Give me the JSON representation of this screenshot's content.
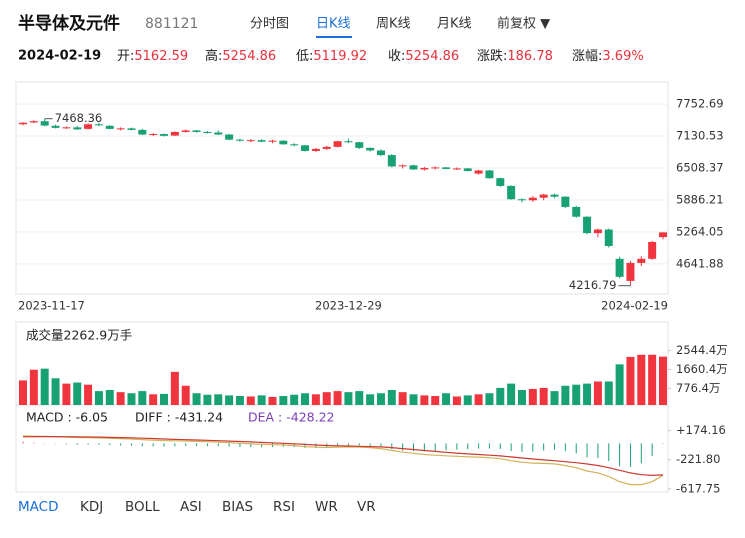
{
  "header": {
    "title": "半导体及元件",
    "code": "881121",
    "tabs": [
      "分时图",
      "日K线",
      "周K线",
      "月K线",
      "前复权 ▼"
    ],
    "active_tab": 1
  },
  "info": {
    "date": "2024-02-19",
    "fields": [
      {
        "label": "开:",
        "value": "5162.59"
      },
      {
        "label": "高:",
        "value": "5254.86"
      },
      {
        "label": "低:",
        "value": "5119.92"
      },
      {
        "label": "收:",
        "value": "5254.86"
      },
      {
        "label": "涨跌:",
        "value": "186.78"
      },
      {
        "label": "涨幅:",
        "value": "3.69%"
      }
    ]
  },
  "chart_data": [
    {
      "type": "candlestick",
      "categories": [
        "2023-11-17",
        null,
        null,
        null,
        null,
        null,
        null,
        null,
        null,
        null,
        null,
        null,
        null,
        null,
        null,
        null,
        null,
        null,
        null,
        null,
        null,
        null,
        null,
        null,
        null,
        null,
        null,
        null,
        null,
        null,
        "2023-12-29",
        null,
        null,
        null,
        null,
        null,
        null,
        null,
        null,
        null,
        null,
        null,
        null,
        null,
        null,
        null,
        null,
        null,
        null,
        null,
        null,
        null,
        null,
        null,
        null,
        null,
        null,
        null,
        null,
        "2024-02-19"
      ],
      "open": [
        7360,
        7395,
        7420,
        7330,
        7290,
        7300,
        7270,
        7360,
        7330,
        7270,
        7280,
        7250,
        7160,
        7170,
        7140,
        7210,
        7240,
        7210,
        7200,
        7160,
        7060,
        7040,
        7050,
        7020,
        7040,
        6970,
        6950,
        6840,
        6880,
        6920,
        7030,
        7010,
        6900,
        6850,
        6760,
        6540,
        6560,
        6480,
        6510,
        6520,
        6490,
        6500,
        6400,
        6460,
        6310,
        6160,
        5900,
        5880,
        5930,
        5990,
        5950,
        5750,
        5560,
        5240,
        5310,
        4740,
        4310,
        4660,
        4740,
        5162.59
      ],
      "high": [
        7400,
        7440,
        7468.36,
        7350,
        7320,
        7330,
        7380,
        7390,
        7345,
        7300,
        7295,
        7270,
        7190,
        7180,
        7220,
        7260,
        7250,
        7230,
        7240,
        7170,
        7080,
        7070,
        7070,
        7060,
        7050,
        6990,
        6960,
        6900,
        6940,
        7040,
        7080,
        7020,
        6910,
        6870,
        6780,
        6580,
        6570,
        6530,
        6540,
        6530,
        6520,
        6510,
        6470,
        6470,
        6320,
        6170,
        5920,
        5960,
        6010,
        6010,
        5960,
        5770,
        5570,
        5330,
        5330,
        4780,
        4700,
        4790,
        5090,
        5254.86
      ],
      "low": [
        7340,
        7380,
        7320,
        7280,
        7270,
        7250,
        7260,
        7320,
        7260,
        7240,
        7240,
        7150,
        7130,
        7120,
        7130,
        7200,
        7200,
        7180,
        7150,
        7050,
        7020,
        7010,
        7010,
        6990,
        6960,
        6930,
        6830,
        6820,
        6860,
        6910,
        6990,
        6880,
        6830,
        6740,
        6520,
        6500,
        6470,
        6460,
        6480,
        6480,
        6470,
        6440,
        6380,
        6300,
        6140,
        5890,
        5840,
        5850,
        5880,
        5920,
        5730,
        5540,
        5220,
        5160,
        4960,
        4360,
        4216.79,
        4600,
        4720,
        5119.92
      ],
      "close": [
        7390,
        7420,
        7335,
        7290,
        7300,
        7260,
        7360,
        7340,
        7270,
        7280,
        7250,
        7160,
        7170,
        7135,
        7210,
        7240,
        7210,
        7200,
        7160,
        7060,
        7040,
        7050,
        7020,
        7040,
        6970,
        6950,
        6840,
        6880,
        6920,
        7030,
        7010,
        6900,
        6850,
        6760,
        6540,
        6560,
        6480,
        6510,
        6520,
        6490,
        6500,
        6450,
        6460,
        6310,
        6160,
        5900,
        5880,
        5930,
        5990,
        5950,
        5750,
        5560,
        5240,
        5310,
        4990,
        4390,
        4660,
        4740,
        5068.08,
        5254.86
      ],
      "up_color": "#f0353f",
      "down_color": "#17a174",
      "ylim": [
        4055,
        8183
      ],
      "yticks": [
        7752.69,
        7130.53,
        6508.37,
        5886.21,
        5264.05,
        4641.88
      ],
      "grid": true,
      "annotations": [
        {
          "label": "7468.36",
          "value": 7468.36
        },
        {
          "label": "4216.79",
          "value": 4216.79
        }
      ]
    },
    {
      "type": "bar",
      "title": "成交量2262.9万手",
      "values": [
        1150,
        1650,
        1700,
        1250,
        1000,
        1050,
        950,
        650,
        700,
        600,
        550,
        650,
        500,
        520,
        1550,
        900,
        550,
        480,
        500,
        450,
        420,
        400,
        450,
        380,
        420,
        480,
        550,
        500,
        600,
        650,
        600,
        650,
        500,
        550,
        700,
        600,
        500,
        450,
        420,
        550,
        400,
        450,
        500,
        550,
        800,
        1000,
        700,
        750,
        800,
        650,
        900,
        950,
        1000,
        1100,
        1100,
        1900,
        2250,
        2350,
        2350,
        2262.9
      ],
      "ylim": [
        0,
        2900
      ],
      "yticks": [
        {
          "value": 2544.4,
          "label": "2544.4万"
        },
        {
          "value": 1660.4,
          "label": "1660.4万"
        },
        {
          "value": 776.4,
          "label": "776.4万"
        }
      ]
    },
    {
      "type": "macd",
      "legend": [
        "MACD : -6.05",
        "DIFF : -431.24",
        "DEA : -428.22"
      ],
      "histogram": {
        "up_color": "#f0353f",
        "down_color": "#17a174",
        "values": [
          20,
          12,
          4,
          -4,
          -12,
          -18,
          -18,
          -20,
          -24,
          -28,
          -32,
          -38,
          -42,
          -44,
          -40,
          -36,
          -36,
          -36,
          -38,
          -44,
          -48,
          -50,
          -50,
          -50,
          -46,
          -50,
          -64,
          -62,
          -54,
          -36,
          -26,
          -26,
          -30,
          -44,
          -76,
          -100,
          -104,
          -108,
          -102,
          -94,
          -86,
          -80,
          -70,
          -70,
          -76,
          -104,
          -114,
          -112,
          -96,
          -86,
          -104,
          -136,
          -190,
          -200,
          -240,
          -310,
          -320,
          -270,
          -170,
          -6.05
        ]
      },
      "series": [
        {
          "color": "#d2b15a",
          "values": [
            100,
            98,
            95,
            90,
            85,
            80,
            78,
            75,
            70,
            65,
            60,
            52,
            45,
            38,
            35,
            33,
            28,
            24,
            18,
            10,
            2,
            -5,
            -12,
            -18,
            -22,
            -30,
            -45,
            -52,
            -55,
            -50,
            -48,
            -52,
            -58,
            -70,
            -95,
            -120,
            -135,
            -150,
            -160,
            -168,
            -175,
            -182,
            -186,
            -195,
            -208,
            -235,
            -255,
            -268,
            -272,
            -278,
            -300,
            -330,
            -375,
            -400,
            -450,
            -520,
            -560,
            -560,
            -520,
            -431.24
          ]
        },
        {
          "color": "#cc3b2f",
          "values": [
            90,
            92,
            93,
            92,
            91,
            89,
            87,
            85,
            82,
            79,
            76,
            71,
            66,
            60,
            55,
            51,
            46,
            42,
            37,
            32,
            26,
            20,
            13,
            7,
            1,
            -5,
            -13,
            -21,
            -28,
            -32,
            -35,
            -39,
            -43,
            -48,
            -57,
            -70,
            -83,
            -96,
            -109,
            -121,
            -132,
            -142,
            -151,
            -160,
            -170,
            -183,
            -198,
            -212,
            -224,
            -235,
            -248,
            -262,
            -280,
            -300,
            -330,
            -365,
            -400,
            -425,
            -435,
            -428.22
          ]
        }
      ],
      "ylim": [
        -660,
        250
      ],
      "yticks": [
        {
          "value": 174.16,
          "label": "+174.16"
        },
        {
          "value": -221.8,
          "label": "-221.80"
        },
        -617.75
      ]
    }
  ],
  "indicator_tabs": [
    "MACD",
    "KDJ",
    "BOLL",
    "ASI",
    "BIAS",
    "RSI",
    "WR",
    "VR"
  ],
  "active_indicator": 0
}
